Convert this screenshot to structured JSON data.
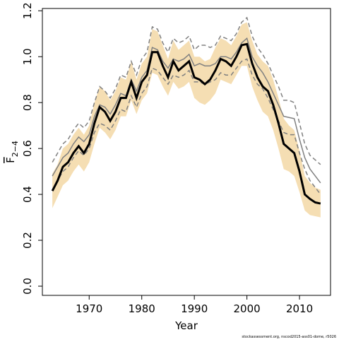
{
  "chart_data": {
    "type": "line",
    "xlabel": "Year",
    "ylabel": {
      "main": "F",
      "sub": "2−4"
    },
    "footer": "stockassessment.org, nscod2015-ass01-dome, r5026",
    "x": [
      1963,
      1964,
      1965,
      1966,
      1967,
      1968,
      1969,
      1970,
      1971,
      1972,
      1973,
      1974,
      1975,
      1976,
      1977,
      1978,
      1979,
      1980,
      1981,
      1982,
      1983,
      1984,
      1985,
      1986,
      1987,
      1988,
      1989,
      1990,
      1991,
      1992,
      1993,
      1994,
      1995,
      1996,
      1997,
      1998,
      1999,
      2000,
      2001,
      2002,
      2003,
      2004,
      2005,
      2006,
      2007,
      2008,
      2009,
      2010,
      2011,
      2012,
      2013,
      2014
    ],
    "band": {
      "color": "#f5deb3",
      "lower": [
        0.34,
        0.39,
        0.44,
        0.46,
        0.5,
        0.53,
        0.5,
        0.54,
        0.62,
        0.69,
        0.67,
        0.64,
        0.68,
        0.74,
        0.74,
        0.81,
        0.75,
        0.81,
        0.84,
        0.93,
        0.92,
        0.87,
        0.83,
        0.89,
        0.86,
        0.87,
        0.89,
        0.82,
        0.8,
        0.79,
        0.81,
        0.84,
        0.9,
        0.89,
        0.88,
        0.92,
        0.96,
        0.96,
        0.87,
        0.81,
        0.76,
        0.74,
        0.68,
        0.6,
        0.51,
        0.5,
        0.48,
        0.41,
        0.33,
        0.31,
        0.305,
        0.3
      ],
      "upper": [
        0.49,
        0.53,
        0.6,
        0.62,
        0.66,
        0.69,
        0.66,
        0.7,
        0.8,
        0.87,
        0.85,
        0.81,
        0.85,
        0.91,
        0.9,
        0.98,
        0.9,
        0.97,
        1.0,
        1.12,
        1.11,
        1.05,
        0.99,
        1.07,
        1.03,
        1.05,
        1.07,
        1.0,
        1.0,
        0.98,
        0.99,
        1.04,
        1.08,
        1.07,
        1.05,
        1.09,
        1.14,
        1.15,
        1.07,
        1.01,
        0.98,
        0.96,
        0.9,
        0.82,
        0.73,
        0.7,
        0.68,
        0.59,
        0.48,
        0.45,
        0.43,
        0.42
      ]
    },
    "series": [
      {
        "color": "#808080",
        "dashed": true,
        "width": 1.5,
        "values": [
          0.54,
          0.58,
          0.62,
          0.64,
          0.68,
          0.71,
          0.69,
          0.72,
          0.8,
          0.87,
          0.85,
          0.82,
          0.86,
          0.92,
          0.91,
          0.98,
          0.92,
          0.99,
          1.02,
          1.13,
          1.12,
          1.06,
          1.02,
          1.08,
          1.06,
          1.07,
          1.09,
          1.03,
          1.05,
          1.05,
          1.04,
          1.05,
          1.09,
          1.08,
          1.07,
          1.1,
          1.15,
          1.17,
          1.09,
          1.04,
          1.01,
          0.97,
          0.92,
          0.87,
          0.81,
          0.81,
          0.8,
          0.71,
          0.62,
          0.57,
          0.55,
          0.53
        ]
      },
      {
        "color": "#808080",
        "dashed": true,
        "width": 1.5,
        "values": [
          0.42,
          0.46,
          0.5,
          0.52,
          0.56,
          0.59,
          0.57,
          0.6,
          0.67,
          0.71,
          0.7,
          0.68,
          0.72,
          0.77,
          0.76,
          0.83,
          0.78,
          0.84,
          0.87,
          0.95,
          0.94,
          0.91,
          0.88,
          0.92,
          0.91,
          0.92,
          0.94,
          0.89,
          0.89,
          0.88,
          0.89,
          0.9,
          0.93,
          0.92,
          0.92,
          0.95,
          0.98,
          0.99,
          0.92,
          0.88,
          0.86,
          0.82,
          0.77,
          0.72,
          0.67,
          0.66,
          0.66,
          0.58,
          0.51,
          0.46,
          0.43,
          0.4
        ]
      },
      {
        "color": "#808080",
        "dashed": false,
        "width": 1.5,
        "values": [
          0.48,
          0.52,
          0.56,
          0.58,
          0.62,
          0.65,
          0.63,
          0.66,
          0.74,
          0.79,
          0.78,
          0.75,
          0.79,
          0.84,
          0.83,
          0.9,
          0.85,
          0.91,
          0.94,
          1.04,
          1.03,
          0.98,
          0.95,
          0.99,
          0.98,
          0.99,
          1.01,
          0.96,
          0.97,
          0.96,
          0.96,
          0.97,
          1.0,
          1.0,
          0.99,
          1.02,
          1.06,
          1.08,
          1.0,
          0.96,
          0.93,
          0.89,
          0.84,
          0.79,
          0.74,
          0.735,
          0.73,
          0.64,
          0.56,
          0.51,
          0.48,
          0.45
        ]
      },
      {
        "color": "#000000",
        "dashed": false,
        "width": 3,
        "values": [
          0.415,
          0.46,
          0.52,
          0.54,
          0.58,
          0.61,
          0.58,
          0.62,
          0.71,
          0.78,
          0.76,
          0.72,
          0.76,
          0.82,
          0.82,
          0.89,
          0.82,
          0.89,
          0.92,
          1.02,
          1.02,
          0.96,
          0.91,
          0.98,
          0.94,
          0.96,
          0.98,
          0.91,
          0.9,
          0.88,
          0.9,
          0.94,
          0.99,
          0.98,
          0.96,
          1.0,
          1.05,
          1.055,
          0.97,
          0.91,
          0.87,
          0.85,
          0.79,
          0.71,
          0.62,
          0.6,
          0.58,
          0.5,
          0.4,
          0.38,
          0.365,
          0.36
        ]
      }
    ],
    "xlim": [
      1961.1,
      2015.9
    ],
    "ylim": [
      -0.04,
      1.21
    ],
    "xticks": [
      1970,
      1980,
      1990,
      2000,
      2010
    ],
    "yticks": [
      {
        "value": 0,
        "label": "0.0"
      },
      0.2,
      0.4,
      0.6,
      0.8,
      {
        "value": 1,
        "label": "1.0"
      },
      1.2
    ]
  }
}
